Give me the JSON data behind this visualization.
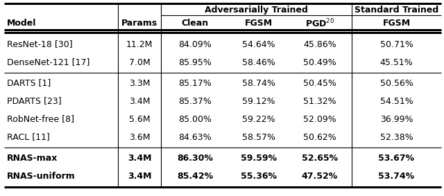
{
  "rows": [
    {
      "model": "ResNet-18 [30]",
      "params": "11.2M",
      "clean": "84.09%",
      "fgsm_adv": "54.64%",
      "pgd": "45.86%",
      "fgsm_std": "50.71%",
      "bold": false,
      "group": 1
    },
    {
      "model": "DenseNet-121 [17]",
      "params": "7.0M",
      "clean": "85.95%",
      "fgsm_adv": "58.46%",
      "pgd": "50.49%",
      "fgsm_std": "45.51%",
      "bold": false,
      "group": 1
    },
    {
      "model": "DARTS [1]",
      "params": "3.3M",
      "clean": "85.17%",
      "fgsm_adv": "58.74%",
      "pgd": "50.45%",
      "fgsm_std": "50.56%",
      "bold": false,
      "group": 2
    },
    {
      "model": "PDARTS [23]",
      "params": "3.4M",
      "clean": "85.37%",
      "fgsm_adv": "59.12%",
      "pgd": "51.32%",
      "fgsm_std": "54.51%",
      "bold": false,
      "group": 2
    },
    {
      "model": "RobNet-free [8]",
      "params": "5.6M",
      "clean": "85.00%",
      "fgsm_adv": "59.22%",
      "pgd": "52.09%",
      "fgsm_std": "36.99%",
      "bold": false,
      "group": 2
    },
    {
      "model": "RACL [11]",
      "params": "3.6M",
      "clean": "84.63%",
      "fgsm_adv": "58.57%",
      "pgd": "50.62%",
      "fgsm_std": "52.38%",
      "bold": false,
      "group": 2
    },
    {
      "model": "RNAS-max",
      "params": "3.4M",
      "clean": "86.30%",
      "fgsm_adv": "59.59%",
      "pgd": "52.65%",
      "fgsm_std": "53.67%",
      "bold": true,
      "group": 3
    },
    {
      "model": "RNAS-uniform",
      "params": "3.4M",
      "clean": "85.42%",
      "fgsm_adv": "55.36%",
      "pgd": "47.52%",
      "fgsm_std": "53.74%",
      "bold": true,
      "group": 3
    }
  ],
  "bg_color": "#ffffff",
  "text_color": "#000000",
  "font_size": 9.0,
  "header_font_size": 9.0
}
